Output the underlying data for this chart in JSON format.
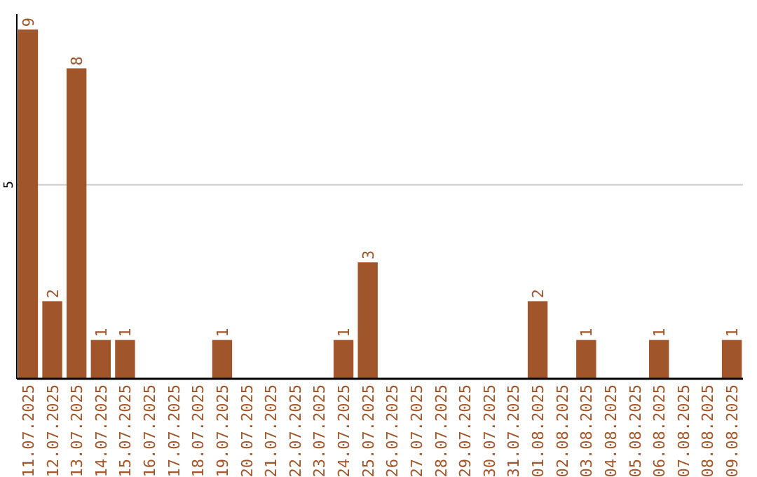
{
  "chart_data": {
    "type": "bar",
    "categories": [
      "11.07.2025",
      "12.07.2025",
      "13.07.2025",
      "14.07.2025",
      "15.07.2025",
      "16.07.2025",
      "17.07.2025",
      "18.07.2025",
      "19.07.2025",
      "20.07.2025",
      "21.07.2025",
      "22.07.2025",
      "23.07.2025",
      "24.07.2025",
      "25.07.2025",
      "26.07.2025",
      "27.07.2025",
      "28.07.2025",
      "29.07.2025",
      "30.07.2025",
      "31.07.2025",
      "01.08.2025",
      "02.08.2025",
      "03.08.2025",
      "04.08.2025",
      "05.08.2025",
      "06.08.2025",
      "07.08.2025",
      "08.08.2025",
      "09.08.2025"
    ],
    "values": [
      9,
      2,
      8,
      1,
      1,
      0,
      0,
      0,
      1,
      0,
      0,
      0,
      0,
      1,
      3,
      0,
      0,
      0,
      0,
      0,
      0,
      2,
      0,
      1,
      0,
      0,
      1,
      0,
      0,
      1
    ],
    "value_labels": [
      "9",
      "2",
      "8",
      "1",
      "1",
      null,
      null,
      null,
      "1",
      null,
      null,
      null,
      null,
      "1",
      "3",
      null,
      null,
      null,
      null,
      null,
      null,
      "2",
      null,
      "1",
      null,
      null,
      "1",
      null,
      null,
      "1"
    ],
    "color": "#a0562a",
    "ylim": [
      0,
      9.4
    ],
    "yticks": [
      5
    ],
    "grid": "y"
  }
}
